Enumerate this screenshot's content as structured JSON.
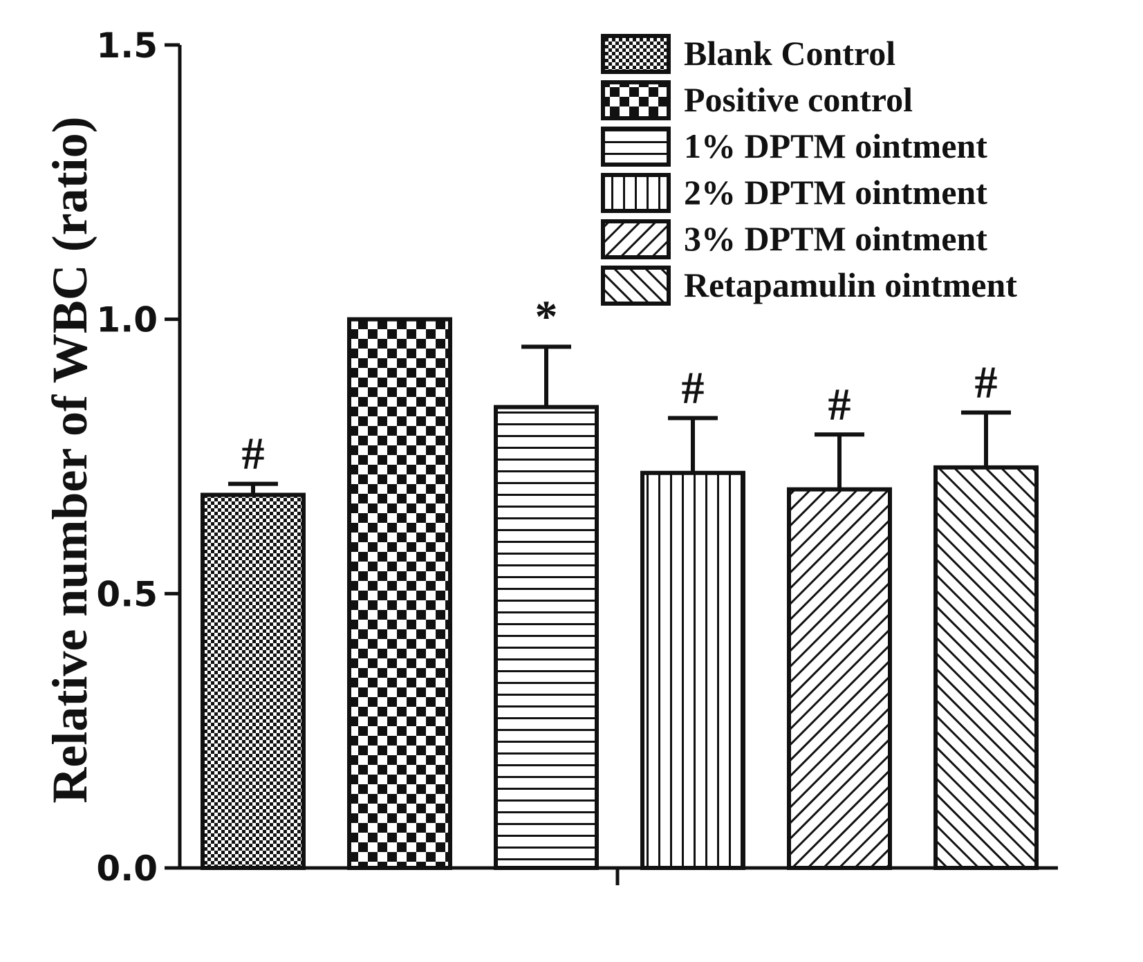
{
  "chart_data": {
    "type": "bar",
    "title": "",
    "xlabel": "",
    "ylabel": "Relative number of WBC (ratio)",
    "ylim": [
      0,
      1.5
    ],
    "yticks": [
      0.0,
      0.5,
      1.0,
      1.5
    ],
    "ytick_labels": [
      "0.0",
      "0.5",
      "1.0",
      "1.5"
    ],
    "grid": false,
    "legend_position": "top-right",
    "categories": [
      "Blank Control",
      "Positive control",
      "1% DPTM ointment",
      "2% DPTM ointment",
      "3% DPTM ointment",
      "Retapamulin ointment"
    ],
    "values": [
      0.68,
      1.0,
      0.84,
      0.72,
      0.69,
      0.73
    ],
    "errors": [
      0.02,
      0.0,
      0.11,
      0.1,
      0.1,
      0.1
    ],
    "annotations": [
      "#",
      "",
      "*",
      "#",
      "#",
      "#"
    ],
    "patterns": [
      "fine-check",
      "coarse-check",
      "horizontal-lines",
      "vertical-lines",
      "diagonal-right",
      "diagonal-left"
    ]
  }
}
